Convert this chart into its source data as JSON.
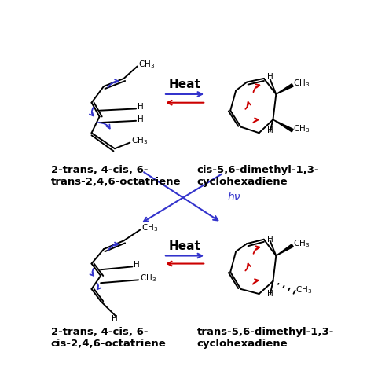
{
  "bg_color": "#ffffff",
  "heat_label": "Heat",
  "hv_label": "hν",
  "top_left_name": "2-trans, 4-cis, 6-\ntrans-2,4,6-octatriene",
  "top_right_name": "cis-5,6-dimethyl-1,3-\ncyclohexadiene",
  "bot_left_name": "2-trans, 4-cis, 6-\ncis-2,4,6-octatriene",
  "bot_right_name": "trans-5,6-dimethyl-1,3-\ncyclohexadiene",
  "blue": "#3333cc",
  "red": "#cc0000",
  "black": "#000000"
}
